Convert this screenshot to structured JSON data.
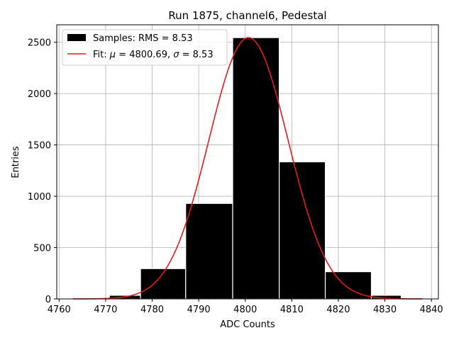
{
  "chart_data": {
    "type": "bar",
    "title": "Run 1875, channel6, Pedestal",
    "xlabel": "ADC Counts",
    "ylabel": "Entries",
    "xlim": [
      4759.5,
      4841.5
    ],
    "ylim": [
      0,
      2670
    ],
    "xticks": [
      4760,
      4770,
      4780,
      4790,
      4800,
      4810,
      4820,
      4830,
      4840
    ],
    "yticks": [
      0,
      500,
      1000,
      1500,
      2000,
      2500
    ],
    "grid": true,
    "legend_position": "top-left",
    "histogram": {
      "name": "Samples: RMS = 8.53",
      "color": "#000000",
      "bins": [
        {
          "x0": 4770.8,
          "x1": 4777.5,
          "value": 35
        },
        {
          "x0": 4777.5,
          "x1": 4787.2,
          "value": 295
        },
        {
          "x0": 4787.2,
          "x1": 4797.3,
          "value": 930
        },
        {
          "x0": 4797.3,
          "x1": 4807.3,
          "value": 2545
        },
        {
          "x0": 4807.3,
          "x1": 4817.2,
          "value": 1335
        },
        {
          "x0": 4817.2,
          "x1": 4827.1,
          "value": 265
        },
        {
          "x0": 4827.1,
          "x1": 4833.5,
          "value": 35
        }
      ]
    },
    "fit": {
      "name_prefix": "Fit: ",
      "mu_symbol": "μ",
      "mid": " = 4800.69, ",
      "sigma_symbol": "σ",
      "suffix": " = 8.53",
      "color": "#e41a1c",
      "mu": 4800.69,
      "sigma": 8.53,
      "amplitude": 2545,
      "x_range": [
        4763,
        4838
      ]
    }
  }
}
